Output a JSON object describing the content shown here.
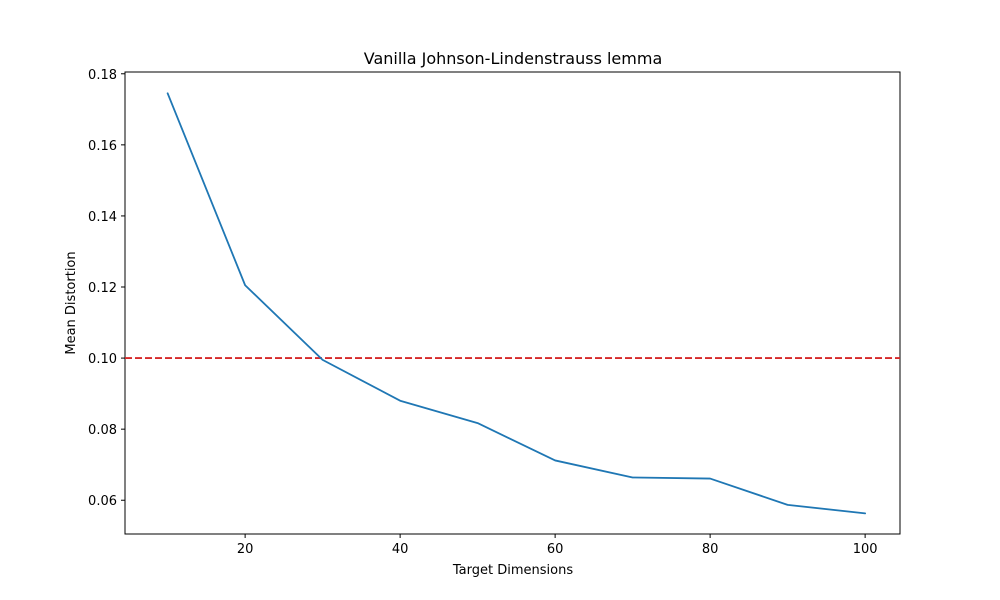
{
  "chart_data": {
    "type": "line",
    "title": "Vanilla Johnson-Lindenstrauss lemma",
    "xlabel": "Target Dimensions",
    "ylabel": "Mean Distortion",
    "xlim": [
      4.5,
      104.5
    ],
    "ylim": [
      0.0505,
      0.1805
    ],
    "x_ticks": [
      20,
      40,
      60,
      80,
      100
    ],
    "x_tick_labels": [
      "20",
      "40",
      "60",
      "80",
      "100"
    ],
    "y_ticks": [
      0.06,
      0.08,
      0.1,
      0.12,
      0.14,
      0.16,
      0.18
    ],
    "y_tick_labels": [
      "0.06",
      "0.08",
      "0.10",
      "0.12",
      "0.14",
      "0.16",
      "0.18"
    ],
    "grid": false,
    "series": [
      {
        "color": "#1f77b4",
        "x": [
          10,
          20,
          30,
          40,
          50,
          60,
          70,
          80,
          90,
          100
        ],
        "y": [
          0.1745,
          0.1205,
          0.0995,
          0.088,
          0.0817,
          0.0712,
          0.0664,
          0.0661,
          0.0587,
          0.0563
        ]
      }
    ],
    "reference_line": {
      "orientation": "horizontal",
      "y": 0.1,
      "color": "#d62728",
      "style": "dashed"
    }
  }
}
